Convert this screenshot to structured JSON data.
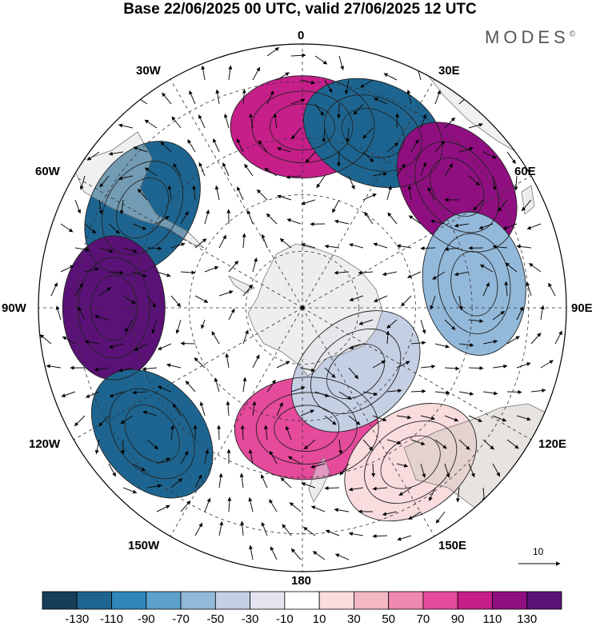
{
  "title": "Base 22/06/2025 00 UTC, valid 27/06/2025 12 UTC",
  "brand": "MODES",
  "brand_mark": "©",
  "longitude_labels": {
    "top": "0",
    "top_right": "30E",
    "right_upper": "60E",
    "right": "90E",
    "right_lower": "120E",
    "bottom_right": "150E",
    "bottom": "180",
    "bottom_left": "150W",
    "left_lower": "120W",
    "left": "90W",
    "left_upper": "60W",
    "top_left": "30W"
  },
  "reference_vector": "10",
  "colorbar": {
    "colors": [
      "#163e5a",
      "#1d6590",
      "#2f86ba",
      "#5ba1cb",
      "#93b9da",
      "#c5cfe4",
      "#e4e3ef",
      "#ffffff",
      "#f9dcde",
      "#f4b7c4",
      "#ee88ae",
      "#e54a9b",
      "#c61f8a",
      "#8f0f80",
      "#5a1276"
    ],
    "ticks": [
      "-130",
      "-110",
      "-90",
      "-70",
      "-50",
      "-30",
      "-10",
      "10",
      "30",
      "50",
      "70",
      "90",
      "110",
      "130"
    ]
  },
  "anomaly_centers": [
    {
      "lon": 0,
      "lat": -42,
      "value": 110
    },
    {
      "lon": 22,
      "lat": -40,
      "value": -130
    },
    {
      "lon": 52,
      "lat": -38,
      "value": 120
    },
    {
      "lon": 82,
      "lat": -44,
      "value": -60
    },
    {
      "lon": -58,
      "lat": -40,
      "value": -130
    },
    {
      "lon": -90,
      "lat": -40,
      "value": 140
    },
    {
      "lon": -130,
      "lat": -38,
      "value": -130
    },
    {
      "lon": 178,
      "lat": -58,
      "value": 90
    },
    {
      "lon": 140,
      "lat": -68,
      "value": -50
    },
    {
      "lon": 145,
      "lat": -40,
      "value": 25
    }
  ]
}
